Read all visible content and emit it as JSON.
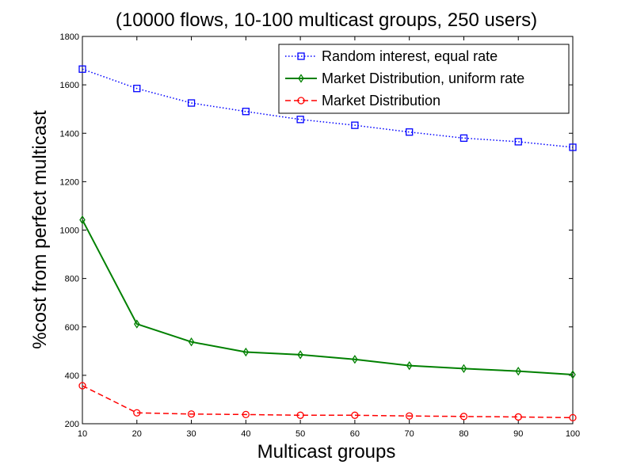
{
  "chart_data": {
    "type": "line",
    "title": "(10000 flows, 10-100 multicast groups, 250 users)",
    "xlabel": "Multicast groups",
    "ylabel": "%cost from perfect multicast",
    "xlim": [
      10,
      100
    ],
    "ylim": [
      200,
      1800
    ],
    "x_ticks": [
      "10",
      "20",
      "30",
      "40",
      "50",
      "60",
      "70",
      "80",
      "90",
      "100"
    ],
    "y_ticks": [
      "200",
      "400",
      "600",
      "800",
      "1000",
      "1200",
      "1400",
      "1600",
      "1800"
    ],
    "grid": false,
    "legend_position": "top-right",
    "x": [
      10,
      20,
      30,
      40,
      50,
      60,
      70,
      80,
      90,
      100
    ],
    "series": [
      {
        "name": "Random interest, equal rate",
        "color": "#0000ff",
        "line_style": "dotted",
        "marker": "square",
        "values": [
          1665,
          1585,
          1525,
          1490,
          1457,
          1433,
          1405,
          1380,
          1365,
          1342
        ]
      },
      {
        "name": "Market Distribution, uniform rate",
        "color": "#008000",
        "line_style": "solid",
        "marker": "diamond",
        "values": [
          1042,
          612,
          538,
          496,
          485,
          466,
          440,
          428,
          417,
          403
        ]
      },
      {
        "name": "Market Distribution",
        "color": "#ff0000",
        "line_style": "dashed",
        "marker": "circle",
        "values": [
          357,
          245,
          240,
          238,
          235,
          235,
          232,
          230,
          228,
          225
        ]
      }
    ]
  }
}
